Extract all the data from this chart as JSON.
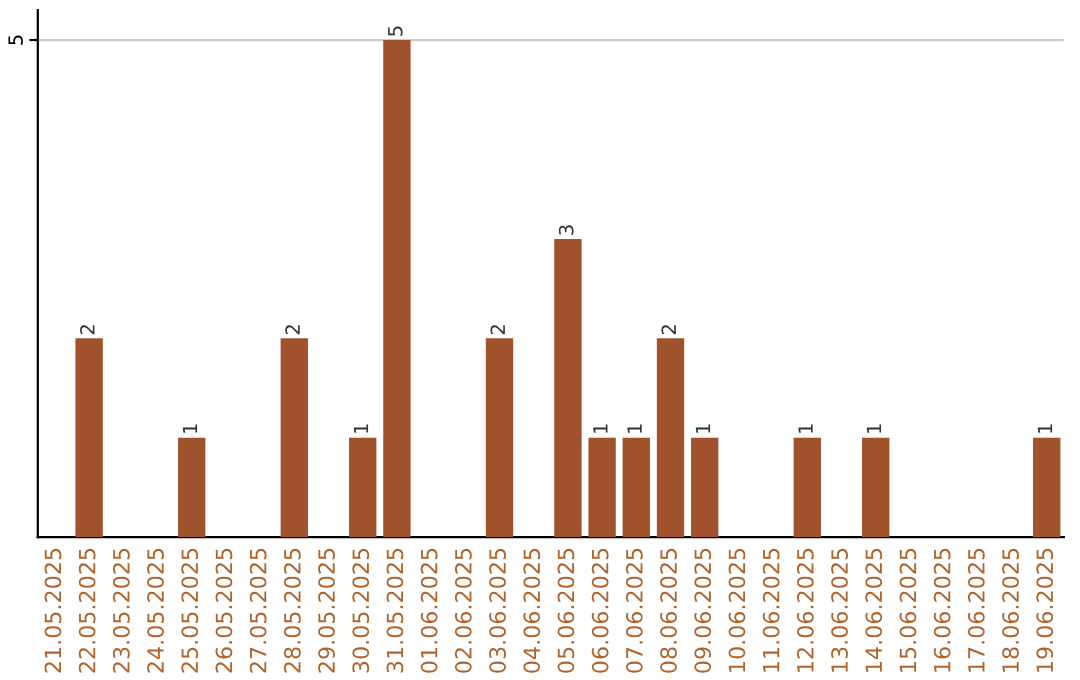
{
  "chart_data": {
    "type": "bar",
    "categories": [
      "21.05.2025",
      "22.05.2025",
      "23.05.2025",
      "24.05.2025",
      "25.05.2025",
      "26.05.2025",
      "27.05.2025",
      "28.05.2025",
      "29.05.2025",
      "30.05.2025",
      "31.05.2025",
      "01.06.2025",
      "02.06.2025",
      "03.06.2025",
      "04.06.2025",
      "05.06.2025",
      "06.06.2025",
      "07.06.2025",
      "08.06.2025",
      "09.06.2025",
      "10.06.2025",
      "11.06.2025",
      "12.06.2025",
      "13.06.2025",
      "14.06.2025",
      "15.06.2025",
      "16.06.2025",
      "17.06.2025",
      "18.06.2025",
      "19.06.2025"
    ],
    "values": [
      0,
      2,
      0,
      0,
      1,
      0,
      0,
      2,
      0,
      1,
      5,
      0,
      0,
      2,
      0,
      3,
      1,
      1,
      2,
      1,
      0,
      0,
      1,
      0,
      1,
      0,
      0,
      0,
      0,
      1
    ],
    "value_labels": [
      null,
      "2",
      null,
      null,
      "1",
      null,
      null,
      "2",
      null,
      "1",
      "5",
      null,
      null,
      "2",
      null,
      "3",
      "1",
      "1",
      "2",
      "1",
      null,
      null,
      "1",
      null,
      "1",
      null,
      null,
      null,
      null,
      "1"
    ],
    "color": "#a0522d",
    "ylim": [
      0,
      5.3
    ],
    "yticks": [
      5
    ],
    "grid": "y"
  }
}
